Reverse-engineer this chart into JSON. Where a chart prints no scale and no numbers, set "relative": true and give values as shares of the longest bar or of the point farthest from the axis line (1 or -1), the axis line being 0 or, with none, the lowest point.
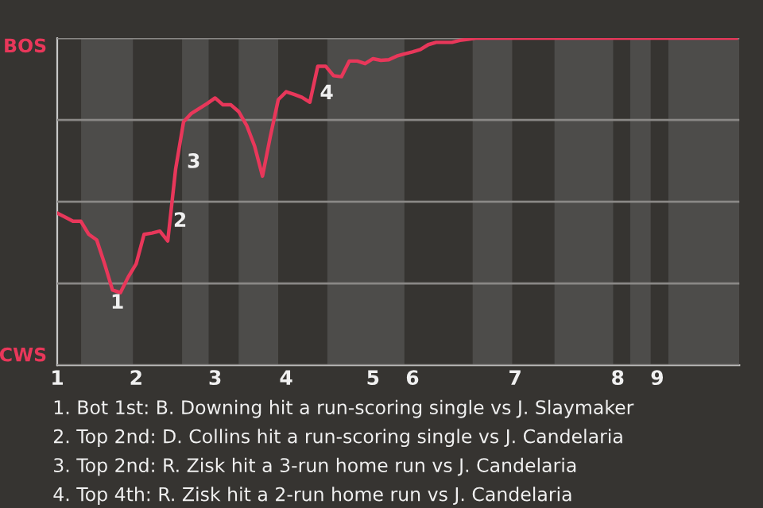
{
  "chart_data": {
    "type": "line",
    "relative": true,
    "categories": [
      "1",
      null,
      null,
      null,
      null,
      null,
      null,
      null,
      null,
      null,
      "2",
      null,
      null,
      null,
      null,
      null,
      null,
      null,
      null,
      null,
      "3",
      null,
      null,
      null,
      null,
      null,
      null,
      null,
      null,
      "4",
      null,
      null,
      null,
      null,
      null,
      null,
      null,
      null,
      null,
      null,
      "5",
      null,
      null,
      null,
      null,
      "6",
      null,
      null,
      null,
      null,
      null,
      null,
      null,
      null,
      null,
      null,
      null,
      null,
      "7",
      null,
      null,
      null,
      null,
      null,
      null,
      null,
      null,
      null,
      null,
      null,
      null,
      "8",
      null,
      null,
      null,
      null,
      "9",
      null,
      null,
      null,
      null,
      null,
      null,
      null,
      null,
      null,
      null
    ],
    "series": [
      {
        "color": "#e8375a",
        "values": [
          0.465,
          0.453,
          0.44,
          0.44,
          0.4,
          0.383,
          0.31,
          0.23,
          0.222,
          0.27,
          0.31,
          0.4,
          0.404,
          0.41,
          0.38,
          0.6,
          0.744,
          0.77,
          0.785,
          0.8,
          0.817,
          0.796,
          0.796,
          0.775,
          0.733,
          0.67,
          0.578,
          0.7,
          0.812,
          0.836,
          0.828,
          0.819,
          0.804,
          0.914,
          0.914,
          0.885,
          0.882,
          0.93,
          0.93,
          0.922,
          0.937,
          0.932,
          0.934,
          0.945,
          0.952,
          0.958,
          0.965,
          0.98,
          0.987,
          0.987,
          0.987,
          0.993,
          0.996,
          1,
          1,
          1,
          1,
          1,
          1,
          1,
          1,
          1,
          1,
          1,
          1,
          1,
          1,
          1,
          1,
          1,
          1,
          1,
          1,
          1,
          1,
          1,
          1,
          1,
          1,
          1,
          1,
          1,
          1,
          1,
          1,
          1,
          1
        ]
      }
    ],
    "grid": "y",
    "marker": "none",
    "line_style": "solid",
    "annotations": [
      "BOS",
      "CWS",
      "1",
      "2",
      "3",
      "4",
      "1. Bot 1st: B. Downing hit a run-scoring single vs J. Slaymaker",
      "2. Top 2nd: D. Collins hit a run-scoring single vs J. Candelaria",
      "3. Top 2nd: R. Zisk hit a 3-run home run vs J. Candelaria",
      "4. Top 4th: R. Zisk hit a 2-run home run vs J. Candelaria"
    ]
  }
}
